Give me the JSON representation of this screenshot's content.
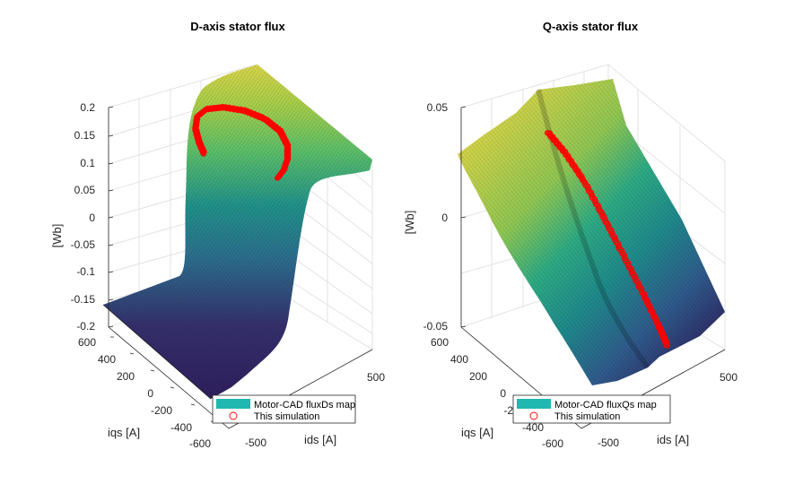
{
  "chart_data": [
    {
      "type": "surface",
      "title": "D-axis stator flux",
      "xlabel": "ids [A]",
      "ylabel": "iqs [A]",
      "zlabel": "[Wb]",
      "xlim": [
        -600,
        600
      ],
      "ylim": [
        -600,
        600
      ],
      "zlim": [
        -0.2,
        0.2
      ],
      "xticks": [
        "-500",
        "500"
      ],
      "yticks": [
        "600",
        "400",
        "200",
        "0",
        "-200",
        "-400",
        "-600"
      ],
      "zticks": [
        "0.2",
        "0.15",
        "0.1",
        "0.05",
        "0",
        "-0.05",
        "-0.1",
        "-0.15",
        "-0.2"
      ],
      "surface_profile": {
        "iqs": [
          -600,
          -400,
          -300,
          -200,
          -150,
          -100,
          -50,
          0,
          50,
          100,
          150,
          200,
          300,
          400,
          600
        ],
        "flux": [
          -0.158,
          -0.15,
          -0.14,
          -0.12,
          -0.09,
          -0.05,
          0.0,
          0.05,
          0.1,
          0.14,
          0.165,
          0.18,
          0.19,
          0.195,
          0.2
        ]
      },
      "simulation_path": {
        "ids": [
          -230,
          -250,
          -260,
          -240,
          -180,
          -80,
          40,
          150,
          230,
          260,
          250,
          220,
          180
        ],
        "iqs": [
          40,
          120,
          220,
          320,
          390,
          420,
          410,
          360,
          270,
          160,
          60,
          -20,
          -60
        ],
        "flux": [
          0.19,
          0.195,
          0.198,
          0.2,
          0.2,
          0.2,
          0.2,
          0.2,
          0.199,
          0.197,
          0.193,
          0.185,
          0.17
        ]
      },
      "legend": {
        "entries": [
          "Motor-CAD fluxDs map",
          "This simulation"
        ],
        "location": "south"
      },
      "colors": {
        "surface_low": "#2b1f5c",
        "surface_mid": "#21908c",
        "surface_high": "#d8d84a",
        "simulation": "#ff0000",
        "legend_patch": "#1fb8b0"
      },
      "grid": true
    },
    {
      "type": "surface",
      "title": "Q-axis stator flux",
      "xlabel": "ids [A]",
      "ylabel": "iqs [A]",
      "zlabel": "[Wb]",
      "xlim": [
        -600,
        600
      ],
      "ylim": [
        -600,
        600
      ],
      "zlim": [
        -0.05,
        0.05
      ],
      "xticks": [
        "-500",
        "500"
      ],
      "yticks": [
        "600",
        "400",
        "200",
        "0",
        "-2"
      ],
      "zticks": [
        "0.05",
        "0",
        "-0.05"
      ],
      "surface_profile": {
        "ids": [
          -600,
          -300,
          0,
          300,
          600
        ],
        "flux": [
          0.06,
          0.03,
          0.0,
          -0.03,
          -0.06
        ]
      },
      "simulation_path": {
        "ids": [
          -430,
          -300,
          -150,
          0,
          150,
          300,
          430,
          500
        ],
        "iqs": [
          -200,
          -100,
          0,
          100,
          200,
          300,
          380,
          420
        ],
        "flux": [
          0.047,
          0.04,
          0.028,
          0.012,
          -0.005,
          -0.022,
          -0.038,
          -0.048
        ]
      },
      "legend": {
        "entries": [
          "Motor-CAD fluxQs map",
          "This simulation"
        ],
        "location": "south"
      },
      "colors": {
        "surface_low": "#2b1f5c",
        "surface_mid": "#21908c",
        "surface_high": "#d8d84a",
        "simulation": "#ff0000",
        "legend_patch": "#1fb8b0"
      },
      "grid": true
    }
  ]
}
